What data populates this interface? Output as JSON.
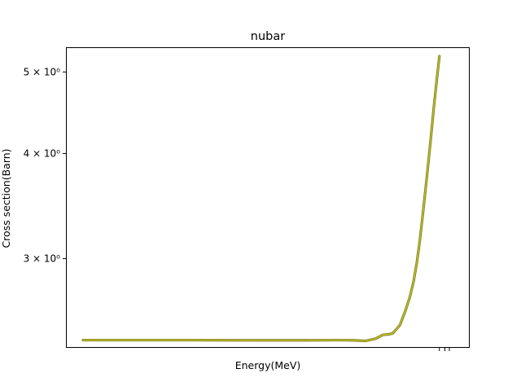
{
  "chart_data": {
    "type": "line",
    "title": "nubar",
    "xlabel": "Energy(MeV)",
    "ylabel": "Cross section(Barn)",
    "yscale": "log",
    "xscale": "log",
    "ylim": [
      2.35,
      5.35
    ],
    "yticks": [
      {
        "value": 3,
        "label": "3 × 10⁰"
      },
      {
        "value": 4,
        "label": "4 × 10⁰"
      },
      {
        "value": 5,
        "label": "5 × 10⁰"
      }
    ],
    "xlim": [
      1e-05,
      30
    ],
    "x_minor_ticks": [
      20,
      25,
      30
    ],
    "grid": false,
    "series": [
      {
        "color": "#7f7f2a",
        "x": [
          1e-05,
          0.0001,
          0.001,
          0.01,
          0.03,
          0.1,
          0.3,
          0.6,
          1.0,
          1.5,
          2.0,
          2.5,
          3.0,
          4.0,
          5.0,
          6.0,
          7.0,
          8.0,
          9.0,
          10.0,
          12.0,
          14.0,
          16.0,
          18.0,
          20.0
        ],
        "y": [
          2.4,
          2.4,
          2.4,
          2.399,
          2.399,
          2.399,
          2.4,
          2.399,
          2.395,
          2.41,
          2.435,
          2.438,
          2.445,
          2.5,
          2.6,
          2.7,
          2.82,
          2.97,
          3.15,
          3.35,
          3.75,
          4.15,
          4.55,
          4.9,
          5.22
        ]
      },
      {
        "color": "#bcbd22",
        "x": [
          1e-05,
          0.0001,
          0.001,
          0.01,
          0.03,
          0.1,
          0.3,
          0.6,
          1.0,
          1.5,
          2.0,
          2.5,
          3.0,
          4.0,
          5.0,
          6.0,
          7.0,
          8.0,
          9.0,
          10.0,
          12.0,
          14.0,
          16.0,
          18.0,
          20.0
        ],
        "y": [
          2.4,
          2.4,
          2.4,
          2.399,
          2.399,
          2.399,
          2.4,
          2.399,
          2.395,
          2.41,
          2.435,
          2.438,
          2.445,
          2.5,
          2.6,
          2.7,
          2.82,
          2.97,
          3.15,
          3.35,
          3.75,
          4.15,
          4.55,
          4.9,
          5.22
        ]
      }
    ]
  }
}
